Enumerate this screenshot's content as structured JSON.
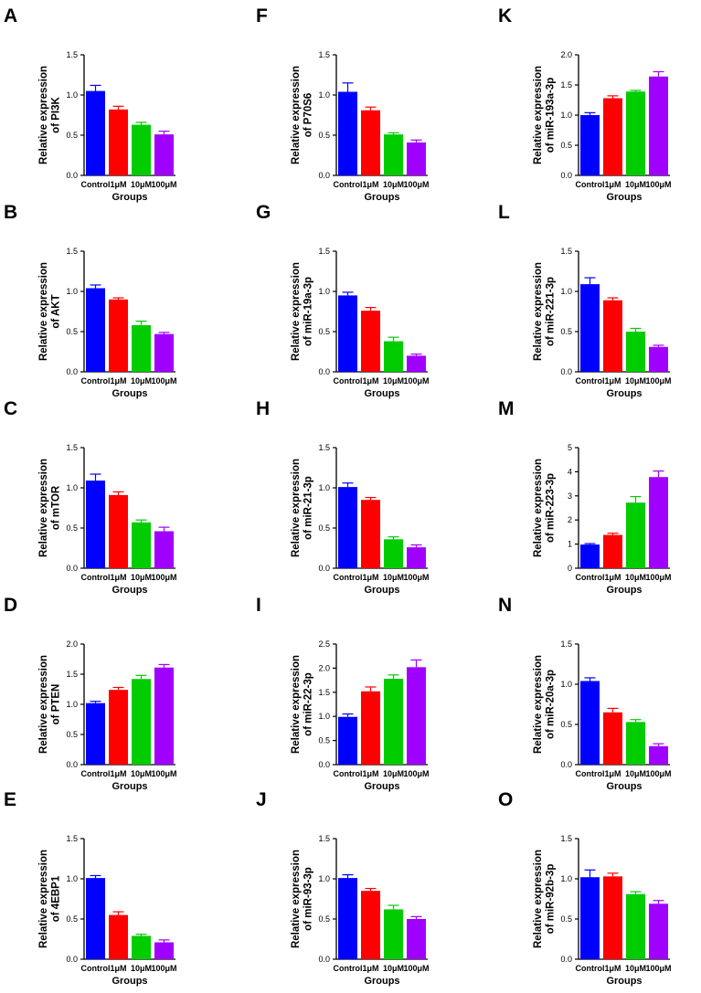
{
  "chart_data": [
    {
      "panel": "A",
      "type": "bar",
      "ylabel_lines": [
        "Relative expression",
        "of PI3K"
      ],
      "xlabel": "Groups",
      "categories": [
        "Control",
        "1μM",
        "10μM",
        "100μM"
      ],
      "values": [
        1.05,
        0.82,
        0.63,
        0.51
      ],
      "errors": [
        0.07,
        0.04,
        0.03,
        0.04
      ],
      "ylim": [
        0,
        1.5
      ],
      "yticks": [
        "0.0",
        "0.5",
        "1.0",
        "1.5"
      ]
    },
    {
      "panel": "B",
      "type": "bar",
      "ylabel_lines": [
        "Relative expression",
        "of AKT"
      ],
      "xlabel": "Groups",
      "categories": [
        "Control",
        "1μM",
        "10μM",
        "100μM"
      ],
      "values": [
        1.04,
        0.9,
        0.58,
        0.47
      ],
      "errors": [
        0.04,
        0.02,
        0.05,
        0.02
      ],
      "ylim": [
        0,
        1.5
      ],
      "yticks": [
        "0.0",
        "0.5",
        "1.0",
        "1.5"
      ]
    },
    {
      "panel": "C",
      "type": "bar",
      "ylabel_lines": [
        "Relative expression",
        "of mTOR"
      ],
      "xlabel": "Groups",
      "categories": [
        "Control",
        "1μM",
        "10μM",
        "100μM"
      ],
      "values": [
        1.09,
        0.91,
        0.57,
        0.46
      ],
      "errors": [
        0.08,
        0.04,
        0.03,
        0.05
      ],
      "ylim": [
        0,
        1.5
      ],
      "yticks": [
        "0.0",
        "0.5",
        "1.0",
        "1.5"
      ]
    },
    {
      "panel": "D",
      "type": "bar",
      "ylabel_lines": [
        "Relative expression",
        "of PTEN"
      ],
      "xlabel": "Groups",
      "categories": [
        "Control",
        "1μM",
        "10μM",
        "100μM"
      ],
      "values": [
        1.02,
        1.24,
        1.42,
        1.61
      ],
      "errors": [
        0.03,
        0.04,
        0.06,
        0.05
      ],
      "ylim": [
        0,
        2.0
      ],
      "yticks": [
        "0.0",
        "0.5",
        "1.0",
        "1.5",
        "2.0"
      ]
    },
    {
      "panel": "E",
      "type": "bar",
      "ylabel_lines": [
        "Relative expression",
        "of 4EBP1"
      ],
      "xlabel": "Groups",
      "categories": [
        "Control",
        "1μM",
        "10μM",
        "100μM"
      ],
      "values": [
        1.01,
        0.55,
        0.29,
        0.21
      ],
      "errors": [
        0.03,
        0.04,
        0.02,
        0.03
      ],
      "ylim": [
        0,
        1.5
      ],
      "yticks": [
        "0.0",
        "0.5",
        "1.0",
        "1.5"
      ]
    },
    {
      "panel": "F",
      "type": "bar",
      "ylabel_lines": [
        "Relative expression",
        "of P70S6"
      ],
      "xlabel": "Groups",
      "categories": [
        "Control",
        "1μM",
        "10μM",
        "100μM"
      ],
      "values": [
        1.04,
        0.81,
        0.51,
        0.41
      ],
      "errors": [
        0.11,
        0.04,
        0.02,
        0.03
      ],
      "ylim": [
        0,
        1.5
      ],
      "yticks": [
        "0.0",
        "0.5",
        "1.0",
        "1.5"
      ]
    },
    {
      "panel": "G",
      "type": "bar",
      "ylabel_lines": [
        "Relative expression",
        "of miR-19a-3p"
      ],
      "xlabel": "Groups",
      "categories": [
        "Control",
        "1μM",
        "10μM",
        "100μM"
      ],
      "values": [
        0.95,
        0.76,
        0.38,
        0.2
      ],
      "errors": [
        0.04,
        0.04,
        0.05,
        0.02
      ],
      "ylim": [
        0,
        1.5
      ],
      "yticks": [
        "0.0",
        "0.5",
        "1.0",
        "1.5"
      ]
    },
    {
      "panel": "H",
      "type": "bar",
      "ylabel_lines": [
        "Relative expression",
        "of miR-21-3p"
      ],
      "xlabel": "Groups",
      "categories": [
        "Control",
        "1μM",
        "10μM",
        "100μM"
      ],
      "values": [
        1.01,
        0.85,
        0.36,
        0.26
      ],
      "errors": [
        0.05,
        0.03,
        0.03,
        0.03
      ],
      "ylim": [
        0,
        1.5
      ],
      "yticks": [
        "0.0",
        "0.5",
        "1.0",
        "1.5"
      ]
    },
    {
      "panel": "I",
      "type": "bar",
      "ylabel_lines": [
        "Relative expression",
        "of miR-22-3p"
      ],
      "xlabel": "Groups",
      "categories": [
        "Control",
        "1μM",
        "10μM",
        "100μM"
      ],
      "values": [
        0.99,
        1.52,
        1.78,
        2.02
      ],
      "errors": [
        0.06,
        0.09,
        0.08,
        0.15
      ],
      "ylim": [
        0,
        2.5
      ],
      "yticks": [
        "0.0",
        "0.5",
        "1.0",
        "1.5",
        "2.0",
        "2.5"
      ]
    },
    {
      "panel": "J",
      "type": "bar",
      "ylabel_lines": [
        "Relative expression",
        "of miR-93-3p"
      ],
      "xlabel": "Groups",
      "categories": [
        "Control",
        "1μM",
        "10μM",
        "100μM"
      ],
      "values": [
        1.01,
        0.85,
        0.62,
        0.5
      ],
      "errors": [
        0.04,
        0.03,
        0.05,
        0.03
      ],
      "ylim": [
        0,
        1.5
      ],
      "yticks": [
        "0.0",
        "0.5",
        "1.0",
        "1.5"
      ]
    },
    {
      "panel": "K",
      "type": "bar",
      "ylabel_lines": [
        "Relative expression",
        "of miR-193a-3p"
      ],
      "xlabel": "Groups",
      "categories": [
        "Control",
        "1μM",
        "10μM",
        "100μM"
      ],
      "values": [
        1.0,
        1.28,
        1.39,
        1.64
      ],
      "errors": [
        0.04,
        0.04,
        0.02,
        0.08
      ],
      "ylim": [
        0,
        2.0
      ],
      "yticks": [
        "0.0",
        "0.5",
        "1.0",
        "1.5",
        "2.0"
      ]
    },
    {
      "panel": "L",
      "type": "bar",
      "ylabel_lines": [
        "Relative expression",
        "of miR-221-3p"
      ],
      "xlabel": "Groups",
      "categories": [
        "Control",
        "1μM",
        "10μM",
        "100μM"
      ],
      "values": [
        1.09,
        0.89,
        0.5,
        0.31
      ],
      "errors": [
        0.08,
        0.03,
        0.04,
        0.02
      ],
      "ylim": [
        0,
        1.5
      ],
      "yticks": [
        "0.0",
        "0.5",
        "1.0",
        "1.5"
      ]
    },
    {
      "panel": "M",
      "type": "bar",
      "ylabel_lines": [
        "Relative expression",
        "of miR-223-3p"
      ],
      "xlabel": "Groups",
      "categories": [
        "Control",
        "1μM",
        "10μM",
        "100μM"
      ],
      "values": [
        0.98,
        1.38,
        2.72,
        3.78
      ],
      "errors": [
        0.04,
        0.07,
        0.25,
        0.25
      ],
      "ylim": [
        0,
        5
      ],
      "yticks": [
        "0",
        "1",
        "2",
        "3",
        "4",
        "5"
      ]
    },
    {
      "panel": "N",
      "type": "bar",
      "ylabel_lines": [
        "Relative expression",
        "of miR-20a-3p"
      ],
      "xlabel": "Groups",
      "categories": [
        "Control",
        "1μM",
        "10μM",
        "100μM"
      ],
      "values": [
        1.04,
        0.65,
        0.53,
        0.23
      ],
      "errors": [
        0.04,
        0.05,
        0.03,
        0.03
      ],
      "ylim": [
        0,
        1.5
      ],
      "yticks": [
        "0.0",
        "0.5",
        "1.0",
        "1.5"
      ]
    },
    {
      "panel": "O",
      "type": "bar",
      "ylabel_lines": [
        "Relative expression",
        "of miR-92b-3p"
      ],
      "xlabel": "Groups",
      "categories": [
        "Control",
        "1μM",
        "10μM",
        "100μM"
      ],
      "values": [
        1.02,
        1.03,
        0.81,
        0.69
      ],
      "errors": [
        0.09,
        0.04,
        0.03,
        0.04
      ],
      "ylim": [
        0,
        1.5
      ],
      "yticks": [
        "0.0",
        "0.5",
        "1.0",
        "1.5"
      ]
    }
  ],
  "bar_colors": [
    "#0000ff",
    "#ff0000",
    "#00cc00",
    "#a000ff"
  ],
  "error_bar_colors": [
    "#0000ff",
    "#ff0000",
    "#00cc00",
    "#a000ff"
  ]
}
